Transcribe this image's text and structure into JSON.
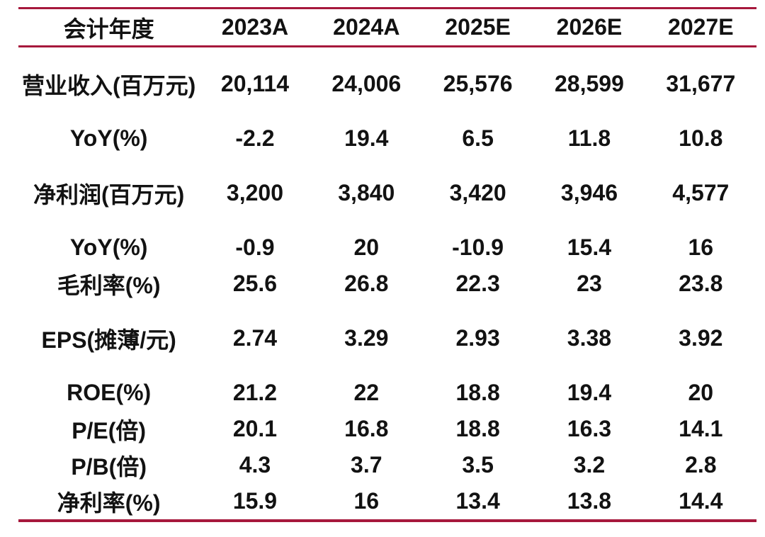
{
  "accent_color": "#A6183C",
  "text_color": "#121212",
  "chart_data": {
    "type": "table",
    "title": "",
    "columns": [
      "会计年度",
      "2023A",
      "2024A",
      "2025E",
      "2026E",
      "2027E"
    ],
    "rows": [
      {
        "label": "营业收入(百万元)",
        "values": [
          "20,114",
          "24,006",
          "25,576",
          "28,599",
          "31,677"
        ],
        "gap_before": true
      },
      {
        "label": "YoY(%)",
        "values": [
          "-2.2",
          "19.4",
          "6.5",
          "11.8",
          "10.8"
        ],
        "gap_before": true
      },
      {
        "label": "净利润(百万元)",
        "values": [
          "3,200",
          "3,840",
          "3,420",
          "3,946",
          "4,577"
        ],
        "gap_before": true
      },
      {
        "label": "YoY(%)",
        "values": [
          "-0.9",
          "20",
          "-10.9",
          "15.4",
          "16"
        ],
        "gap_before": true
      },
      {
        "label": "毛利率(%)",
        "values": [
          "25.6",
          "26.8",
          "22.3",
          "23",
          "23.8"
        ],
        "gap_before": false
      },
      {
        "label": "EPS(摊薄/元)",
        "values": [
          "2.74",
          "3.29",
          "2.93",
          "3.38",
          "3.92"
        ],
        "gap_before": true
      },
      {
        "label": "ROE(%)",
        "values": [
          "21.2",
          "22",
          "18.8",
          "19.4",
          "20"
        ],
        "gap_before": true
      },
      {
        "label": "P/E(倍)",
        "values": [
          "20.1",
          "16.8",
          "18.8",
          "16.3",
          "14.1"
        ],
        "gap_before": false
      },
      {
        "label": "P/B(倍)",
        "values": [
          "4.3",
          "3.7",
          "3.5",
          "3.2",
          "2.8"
        ],
        "gap_before": false
      },
      {
        "label": "净利率(%)",
        "values": [
          "15.9",
          "16",
          "13.4",
          "13.8",
          "14.4"
        ],
        "gap_before": false
      }
    ]
  }
}
